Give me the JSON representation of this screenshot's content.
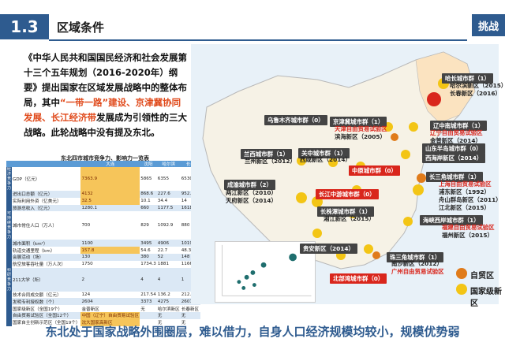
{
  "header": {
    "section_number": "1.3",
    "section_title": "区域条件",
    "challenge_label": "挑战"
  },
  "paragraph": {
    "part1": "《中华人民共和国国民经济和社会发展第十三个五年规划（2016-2020年）纲要》提出国家在区域发展战略中的整体布局，其中",
    "part2_red": "“一带一路”建设、京津冀协同发展、长江经济带",
    "part3": "发展成为引领性的三大战略。此轮战略中没有提及东北。"
  },
  "table": {
    "title": "东北四市城市竞争力、影响力一览表",
    "columns": [
      "",
      "",
      "大连",
      "沈阳",
      "哈尔滨",
      "长春"
    ],
    "rows": [
      {
        "group": "经济竞争力",
        "label": "GDP（亿元）",
        "values": [
          "7363.9",
          "5865",
          "6355",
          "6530"
        ],
        "hl": [
          0
        ]
      },
      {
        "group": "",
        "label": "进出口总额（亿元）",
        "values": [
          "4132",
          "868.6",
          "227.6",
          "952.5"
        ],
        "hl": [
          0
        ]
      },
      {
        "group": "",
        "label": "实际利用外资（亿美元）",
        "values": [
          "32.5",
          "10.1",
          "34.4",
          "14"
        ],
        "hl": [
          0
        ]
      },
      {
        "group": "",
        "label": "旅游总收入（亿元）",
        "values": [
          "1280.1",
          "660",
          "1177.5",
          "1618.3"
        ],
        "hl": []
      },
      {
        "group": "可持续竞争力",
        "label": "城市常住人口（万人）",
        "values": [
          "700",
          "829",
          "1092.9",
          "880"
        ],
        "hl": []
      },
      {
        "group": "",
        "label": "城市面积（km²）",
        "values": [
          "1100",
          "3495",
          "4906",
          "10198"
        ],
        "hl": []
      },
      {
        "group": "",
        "label": "轨道交通里程（km）",
        "values": [
          "157.8",
          "54.6",
          "22.7",
          "48.3"
        ],
        "hl": [
          0
        ]
      },
      {
        "group": "",
        "label": "会展活动（场）",
        "values": [
          "130",
          "380",
          "52",
          "148"
        ],
        "hl": []
      },
      {
        "group": "",
        "label": "航空旅客吞吐量（万人次）",
        "values": [
          "1750",
          "1734.3",
          "1881",
          "1166.27"
        ],
        "hl": []
      },
      {
        "group": "科研竞争力",
        "label": "211大学（所）",
        "values": [
          "2",
          "4",
          "4",
          "1"
        ],
        "hl": []
      },
      {
        "group": "",
        "label": "技术合同成交额（亿元）",
        "values": [
          "124",
          "217.54",
          "136.2",
          "212.8"
        ],
        "hl": []
      },
      {
        "group": "",
        "label": "发明专利授权数（个）",
        "values": [
          "2604",
          "3373",
          "4275",
          "2607"
        ],
        "hl": []
      },
      {
        "group": "",
        "label": "国家级新区（全国19个）",
        "values": [
          "金普新区",
          "无",
          "哈尔滨新区",
          "长春新区"
        ],
        "hl": []
      },
      {
        "group": "",
        "label": "自由贸易试验区（全国12个）",
        "values": [
          "中国（辽宁）自由贸易试验区",
          "",
          "无",
          "无"
        ],
        "hl": [
          0
        ]
      },
      {
        "group": "",
        "label": "国家自主创新示范区（全国19个）",
        "values": [
          "沈大国家高新区",
          "",
          "无",
          "无"
        ],
        "hl": [
          0
        ]
      }
    ]
  },
  "map_labels": [
    {
      "text": "哈长城市群（1）",
      "sub": "哈尔滨新区（2015）\n长春新区（2016）",
      "red": false
    },
    {
      "text": "乌鲁木齐城市群（0）",
      "sub": "",
      "red": false
    },
    {
      "text": "京津冀城市群（1）",
      "sub": "天津自由贸易试验区\n滨海新区（2005）",
      "red": false
    },
    {
      "text": "辽中南城市群（1）",
      "sub": "辽宁自由贸易试验区\n金普新区（2014）",
      "red": false
    },
    {
      "text": "兰西城市群（1）",
      "sub": "兰州新区（2012）",
      "red": false
    },
    {
      "text": "关中城市群（1）",
      "sub": "西咸新区（2014）",
      "red": false
    },
    {
      "text": "山东半岛城市群（0）",
      "sub": "",
      "red": false
    },
    {
      "text": "西海岸新区（2014）",
      "sub": "",
      "red": false
    },
    {
      "text": "中原城市群（0）",
      "sub": "",
      "red": true
    },
    {
      "text": "成渝城市群（2）",
      "sub": "两江新区（2010）\n天府新区（2014）",
      "red": false
    },
    {
      "text": "长江中游城市群（0）",
      "sub": "",
      "red": true
    },
    {
      "text": "长三角城市群（1）",
      "sub": "上海自由贸易试验区\n浦东新区（1992）\n舟山群岛新区（2011）\n江北新区（2015）",
      "red": false
    },
    {
      "text": "长株潭城市群（1）",
      "sub": "湘江新区（2015）",
      "red": false
    },
    {
      "text": "海峡西岸城市群（1）",
      "sub": "福建自由贸易试验区\n福州新区（2015）",
      "red": false
    },
    {
      "text": "珠三角城市群（1）",
      "sub": "南沙新区（2012）\n广州自由贸易试验区",
      "red": false
    },
    {
      "text": "贵安新区（2014）",
      "sub": "",
      "red": false
    },
    {
      "text": "北部湾城市群（0）",
      "sub": "",
      "red": true
    }
  ],
  "legend": {
    "ftz": "自贸区",
    "new_area": "国家级新区",
    "ftz_color": "#e07b1a",
    "new_area_color": "#f3c515"
  },
  "bottom_text": "东北处于国家战略外围圈层，难以借力，自身人口经济规模均较小，规模优势弱"
}
